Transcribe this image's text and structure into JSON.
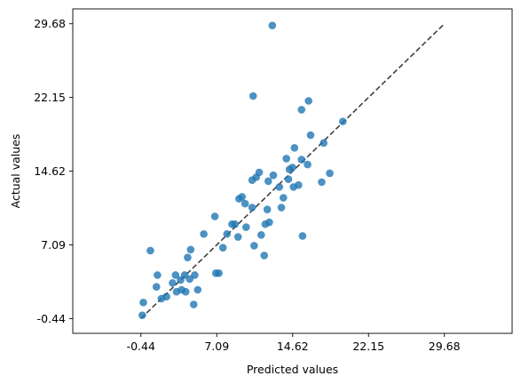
{
  "chart_data": {
    "type": "scatter",
    "title": "",
    "xlabel": "Predicted values",
    "ylabel": "Actual values",
    "xlim": [
      -7.2,
      36.4
    ],
    "ylim": [
      -1.95,
      31.2
    ],
    "xticks": [
      "-0.44",
      "7.09",
      "14.62",
      "22.15",
      "29.68"
    ],
    "yticks": [
      "-0.44",
      "7.09",
      "14.62",
      "22.15",
      "29.68"
    ],
    "grid": false,
    "legend": "none",
    "colors": {
      "points": "#1f77b4",
      "diagonal": "#404040"
    },
    "diagonal": {
      "from": [
        -0.44,
        -0.44
      ],
      "to": [
        29.68,
        29.68
      ],
      "style": "dashed"
    },
    "series": [
      {
        "points": [
          [
            -0.3,
            -0.1
          ],
          [
            -0.2,
            1.2
          ],
          [
            0.5,
            6.5
          ],
          [
            1.1,
            2.8
          ],
          [
            1.2,
            4.0
          ],
          [
            1.6,
            1.6
          ],
          [
            2.1,
            1.8
          ],
          [
            2.7,
            3.2
          ],
          [
            3.0,
            4.0
          ],
          [
            3.1,
            2.3
          ],
          [
            3.5,
            3.5
          ],
          [
            3.6,
            2.5
          ],
          [
            3.9,
            4.0
          ],
          [
            4.0,
            2.3
          ],
          [
            4.2,
            5.8
          ],
          [
            4.4,
            3.6
          ],
          [
            4.5,
            6.6
          ],
          [
            4.8,
            1.0
          ],
          [
            4.9,
            4.0
          ],
          [
            5.2,
            2.5
          ],
          [
            5.8,
            8.2
          ],
          [
            6.9,
            10.0
          ],
          [
            7.0,
            4.2
          ],
          [
            7.3,
            4.2
          ],
          [
            7.7,
            6.8
          ],
          [
            8.1,
            8.2
          ],
          [
            8.6,
            9.2
          ],
          [
            8.9,
            9.2
          ],
          [
            9.2,
            7.9
          ],
          [
            9.3,
            11.8
          ],
          [
            9.6,
            12.0
          ],
          [
            9.9,
            11.3
          ],
          [
            10.0,
            8.9
          ],
          [
            10.6,
            10.9
          ],
          [
            10.6,
            13.7
          ],
          [
            10.7,
            22.3
          ],
          [
            10.8,
            7.0
          ],
          [
            11.0,
            14.0
          ],
          [
            11.3,
            14.5
          ],
          [
            11.5,
            8.1
          ],
          [
            11.8,
            6.0
          ],
          [
            11.9,
            9.2
          ],
          [
            12.1,
            10.7
          ],
          [
            12.2,
            13.6
          ],
          [
            12.3,
            9.4
          ],
          [
            12.6,
            29.5
          ],
          [
            12.7,
            14.2
          ],
          [
            13.3,
            13.0
          ],
          [
            13.5,
            10.9
          ],
          [
            13.7,
            11.9
          ],
          [
            14.0,
            15.9
          ],
          [
            14.2,
            13.8
          ],
          [
            14.3,
            14.8
          ],
          [
            14.6,
            15.0
          ],
          [
            14.7,
            13.0
          ],
          [
            14.8,
            17.0
          ],
          [
            15.2,
            13.2
          ],
          [
            15.5,
            15.8
          ],
          [
            15.5,
            20.9
          ],
          [
            15.6,
            8.0
          ],
          [
            16.1,
            15.3
          ],
          [
            16.2,
            21.8
          ],
          [
            16.4,
            18.3
          ],
          [
            17.5,
            13.5
          ],
          [
            17.7,
            17.5
          ],
          [
            18.3,
            14.4
          ],
          [
            19.6,
            19.7
          ]
        ]
      }
    ]
  }
}
